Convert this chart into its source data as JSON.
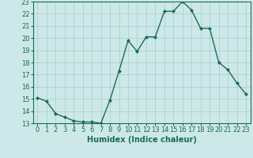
{
  "x": [
    0,
    1,
    2,
    3,
    4,
    5,
    6,
    7,
    8,
    9,
    10,
    11,
    12,
    13,
    14,
    15,
    16,
    17,
    18,
    19,
    20,
    21,
    22,
    23
  ],
  "y": [
    15.1,
    14.8,
    13.8,
    13.5,
    13.2,
    13.1,
    13.1,
    13.0,
    14.9,
    17.3,
    19.8,
    18.9,
    20.1,
    20.1,
    22.2,
    22.2,
    23.0,
    22.3,
    20.8,
    20.8,
    18.0,
    17.4,
    16.3,
    15.4
  ],
  "line_color": "#1a6b5a",
  "marker": "D",
  "marker_size": 2.0,
  "bg_color": "#cde8e8",
  "grid_color": "#a8cccc",
  "xlabel": "Humidex (Indice chaleur)",
  "ylim": [
    13,
    23
  ],
  "xlim_min": -0.5,
  "xlim_max": 23.5,
  "yticks": [
    13,
    14,
    15,
    16,
    17,
    18,
    19,
    20,
    21,
    22,
    23
  ],
  "xticks": [
    0,
    1,
    2,
    3,
    4,
    5,
    6,
    7,
    8,
    9,
    10,
    11,
    12,
    13,
    14,
    15,
    16,
    17,
    18,
    19,
    20,
    21,
    22,
    23
  ],
  "xlabel_fontsize": 7,
  "tick_fontsize": 6,
  "line_width": 1.0
}
